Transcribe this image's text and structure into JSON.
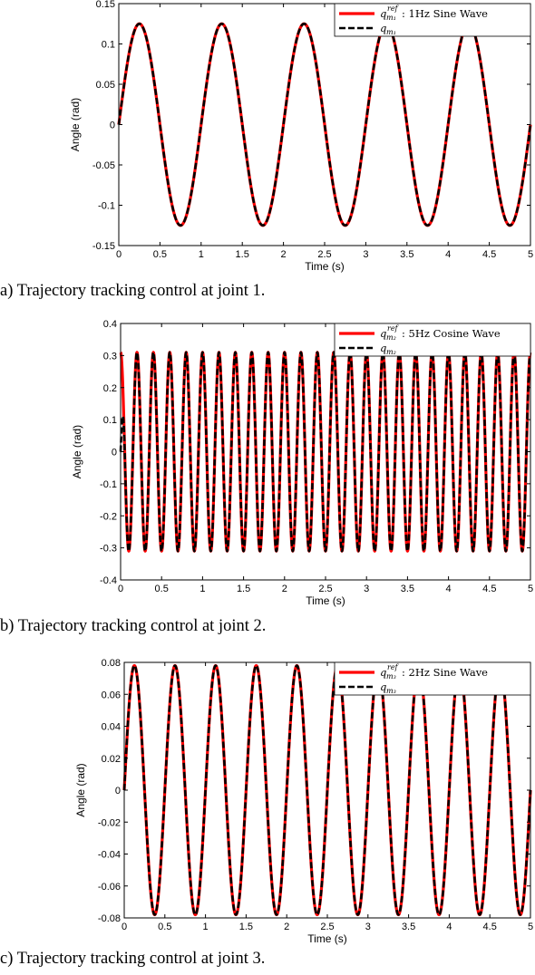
{
  "chart_data": [
    {
      "type": "line",
      "xlabel": "Time (s)",
      "ylabel": "Angle (rad)",
      "xlim": [
        0,
        5
      ],
      "ylim": [
        -0.15,
        0.15
      ],
      "xticks": [
        "0",
        "0.5",
        "1",
        "1.5",
        "2",
        "2.5",
        "3",
        "3.5",
        "4",
        "4.5",
        "5"
      ],
      "yticks": [
        "-0.15",
        "-0.1",
        "-0.05",
        "0",
        "0.05",
        "0.1",
        "0.15"
      ],
      "grid": false,
      "legend_position": "top-right",
      "series": [
        {
          "name": "q_{m_1}^{ref} : 1Hz Sine Wave",
          "legend_main": "q",
          "legend_sub": "m₁",
          "legend_sup": "ref",
          "legend_desc": ": 1Hz Sine Wave",
          "style": "solid",
          "color": "#ff0000",
          "function": "sine",
          "frequency_hz": 1,
          "amplitude": 0.125,
          "start_value": 0
        },
        {
          "name": "q_{m_1}",
          "legend_main": "q",
          "legend_sub": "m₁",
          "legend_sup": "",
          "legend_desc": "",
          "style": "dashed",
          "color": "#000000",
          "function": "sine",
          "frequency_hz": 1,
          "amplitude": 0.125,
          "start_value": 0
        }
      ],
      "caption": "a) Trajectory tracking control at joint 1."
    },
    {
      "type": "line",
      "xlabel": "Time (s)",
      "ylabel": "Angle (rad)",
      "xlim": [
        0,
        5
      ],
      "ylim": [
        -0.4,
        0.4
      ],
      "xticks": [
        "0",
        "0.5",
        "1",
        "1.5",
        "2",
        "2.5",
        "3",
        "3.5",
        "4",
        "4.5",
        "5"
      ],
      "yticks": [
        "-0.4",
        "-0.3",
        "-0.2",
        "-0.1",
        "0",
        "0.1",
        "0.2",
        "0.3",
        "0.4"
      ],
      "grid": false,
      "legend_position": "top-right",
      "series": [
        {
          "name": "q_{m_2}^{ref} : 5Hz Cosine Wave",
          "legend_main": "q",
          "legend_sub": "m₂",
          "legend_sup": "ref",
          "legend_desc": ": 5Hz Cosine Wave",
          "style": "solid",
          "color": "#ff0000",
          "function": "cosine",
          "frequency_hz": 5,
          "amplitude": 0.31,
          "start_value": 0.31
        },
        {
          "name": "q_{m_2}",
          "legend_main": "q",
          "legend_sub": "m₂",
          "legend_sup": "",
          "legend_desc": "",
          "style": "dashed",
          "color": "#000000",
          "function": "cosine",
          "frequency_hz": 5,
          "amplitude": 0.31,
          "start_value": 0
        }
      ],
      "caption": "b) Trajectory tracking control at joint 2."
    },
    {
      "type": "line",
      "xlabel": "Time (s)",
      "ylabel": "Angle (rad)",
      "xlim": [
        0,
        5
      ],
      "ylim": [
        -0.08,
        0.08
      ],
      "xticks": [
        "0",
        "0.5",
        "1",
        "1.5",
        "2",
        "2.5",
        "3",
        "3.5",
        "4",
        "4.5",
        "5"
      ],
      "yticks": [
        "-0.08",
        "-0.06",
        "-0.04",
        "-0.02",
        "0",
        "0.02",
        "0.04",
        "0.06",
        "0.08"
      ],
      "grid": false,
      "legend_position": "top-right",
      "series": [
        {
          "name": "q_{m_3}^{ref} : 2Hz Sine Wave",
          "legend_main": "q",
          "legend_sub": "m₃",
          "legend_sup": "ref",
          "legend_desc": ": 2Hz Sine Wave",
          "style": "solid",
          "color": "#ff0000",
          "function": "sine",
          "frequency_hz": 2,
          "amplitude": 0.078,
          "start_value": 0
        },
        {
          "name": "q_{m_3}",
          "legend_main": "q",
          "legend_sub": "m₃",
          "legend_sup": "",
          "legend_desc": "",
          "style": "dashed",
          "color": "#000000",
          "function": "sine",
          "frequency_hz": 2,
          "amplitude": 0.078,
          "start_value": 0
        }
      ],
      "caption": "c) Trajectory tracking control at joint 3."
    }
  ]
}
